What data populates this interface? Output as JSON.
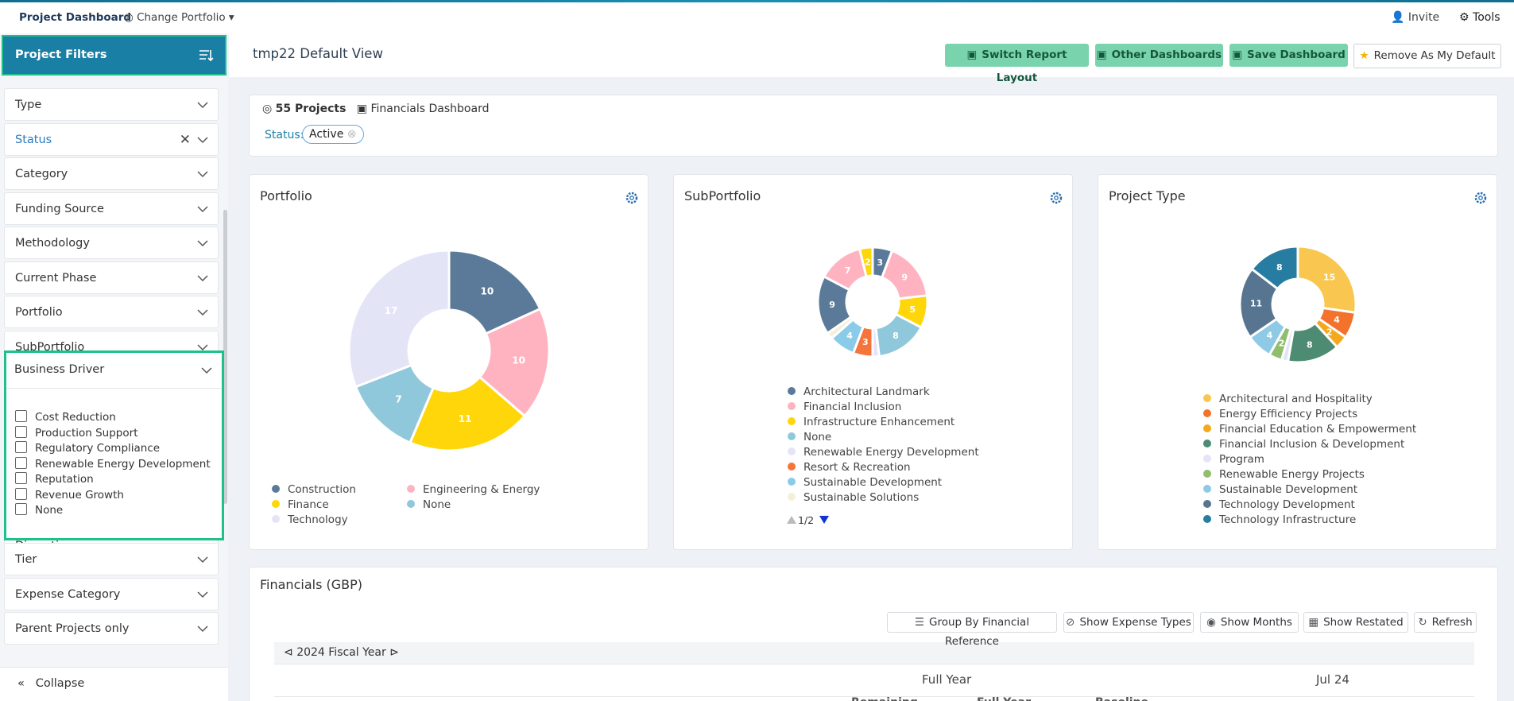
{
  "nav": {
    "title": "Project Dashboard",
    "change_portfolio": "Change Portfolio",
    "invite": "Invite",
    "tools": "Tools"
  },
  "sidebar": {
    "header": "Project Filters",
    "filters": [
      "Type",
      "Status",
      "Category",
      "Funding Source",
      "Methodology",
      "Current Phase",
      "Portfolio",
      "SubPortfolio"
    ],
    "business_driver": {
      "label": "Business Driver",
      "options": [
        "Cost Reduction",
        "Production Support",
        "Regulatory Compliance",
        "Renewable Energy Development",
        "Reputation",
        "Revenue Growth",
        "None"
      ]
    },
    "filters_after": [
      "Discretionary",
      "Tier",
      "Expense Category",
      "Parent Projects only"
    ],
    "collapse": "Collapse"
  },
  "header": {
    "title": "tmp22 Default View",
    "buttons": [
      "Switch Report Layout",
      "Other Dashboards",
      "Save Dashboard",
      "Remove As My Default"
    ]
  },
  "summary": {
    "projects": "55 Projects",
    "dashboard": "Financials Dashboard",
    "status_label": "Status:",
    "status_value": "Active"
  },
  "chart_data": [
    {
      "type": "donut",
      "title": "Portfolio",
      "categories": [
        "Construction",
        "Engineering & Energy",
        "Finance",
        "None",
        "Technology"
      ],
      "values": [
        10,
        10,
        11,
        7,
        17
      ],
      "colors": [
        "#5b7a99",
        "#ffb3c1",
        "#ffd60a",
        "#90c8db",
        "#e4e4f7"
      ]
    },
    {
      "type": "donut",
      "title": "SubPortfolio",
      "categories": [
        "Architectural Landmark",
        "Financial Inclusion",
        "Infrastructure Enhancement",
        "None",
        "Renewable Energy Development",
        "Resort & Recreation",
        "Sustainable Development",
        "Sustainable Solutions",
        null,
        null,
        null
      ],
      "values": [
        3,
        9,
        5,
        8,
        1,
        3,
        4,
        1,
        9,
        7,
        2
      ],
      "colors": [
        "#5b7a99",
        "#ffb3c1",
        "#ffd60a",
        "#90c8db",
        "#e4e4f7",
        "#f4743b",
        "#89cbe8",
        "#f3f0d7",
        "#5b7a99",
        "#ffb3c1",
        "#ffd60a"
      ],
      "pager": "1/2"
    },
    {
      "type": "donut",
      "title": "Project Type",
      "categories": [
        "Architectural and Hospitality",
        "Energy Efficiency Projects",
        "Financial Education & Empowerment",
        "Financial Inclusion & Development",
        "Program",
        "Renewable Energy Projects",
        "Sustainable Development",
        "Technology Development",
        "Technology Infrastructure"
      ],
      "values": [
        15,
        4,
        2,
        8,
        1,
        2,
        4,
        11,
        8
      ],
      "colors": [
        "#f9c74f",
        "#f3722c",
        "#f4a81d",
        "#4d8b73",
        "#e4e4f7",
        "#90be6d",
        "#8ecae6",
        "#577590",
        "#277da1"
      ]
    }
  ],
  "financials": {
    "title": "Financials (GBP)",
    "buttons": [
      "Group By Financial Reference",
      "Show Expense Types",
      "Show Months",
      "Show Restated",
      "Refresh"
    ],
    "fiscal_year": "2024 Fiscal Year",
    "columns": [
      "Full Year",
      "Jul 24"
    ],
    "subcolumns": [
      "Remaining",
      "Full Year",
      "Baseline"
    ]
  }
}
